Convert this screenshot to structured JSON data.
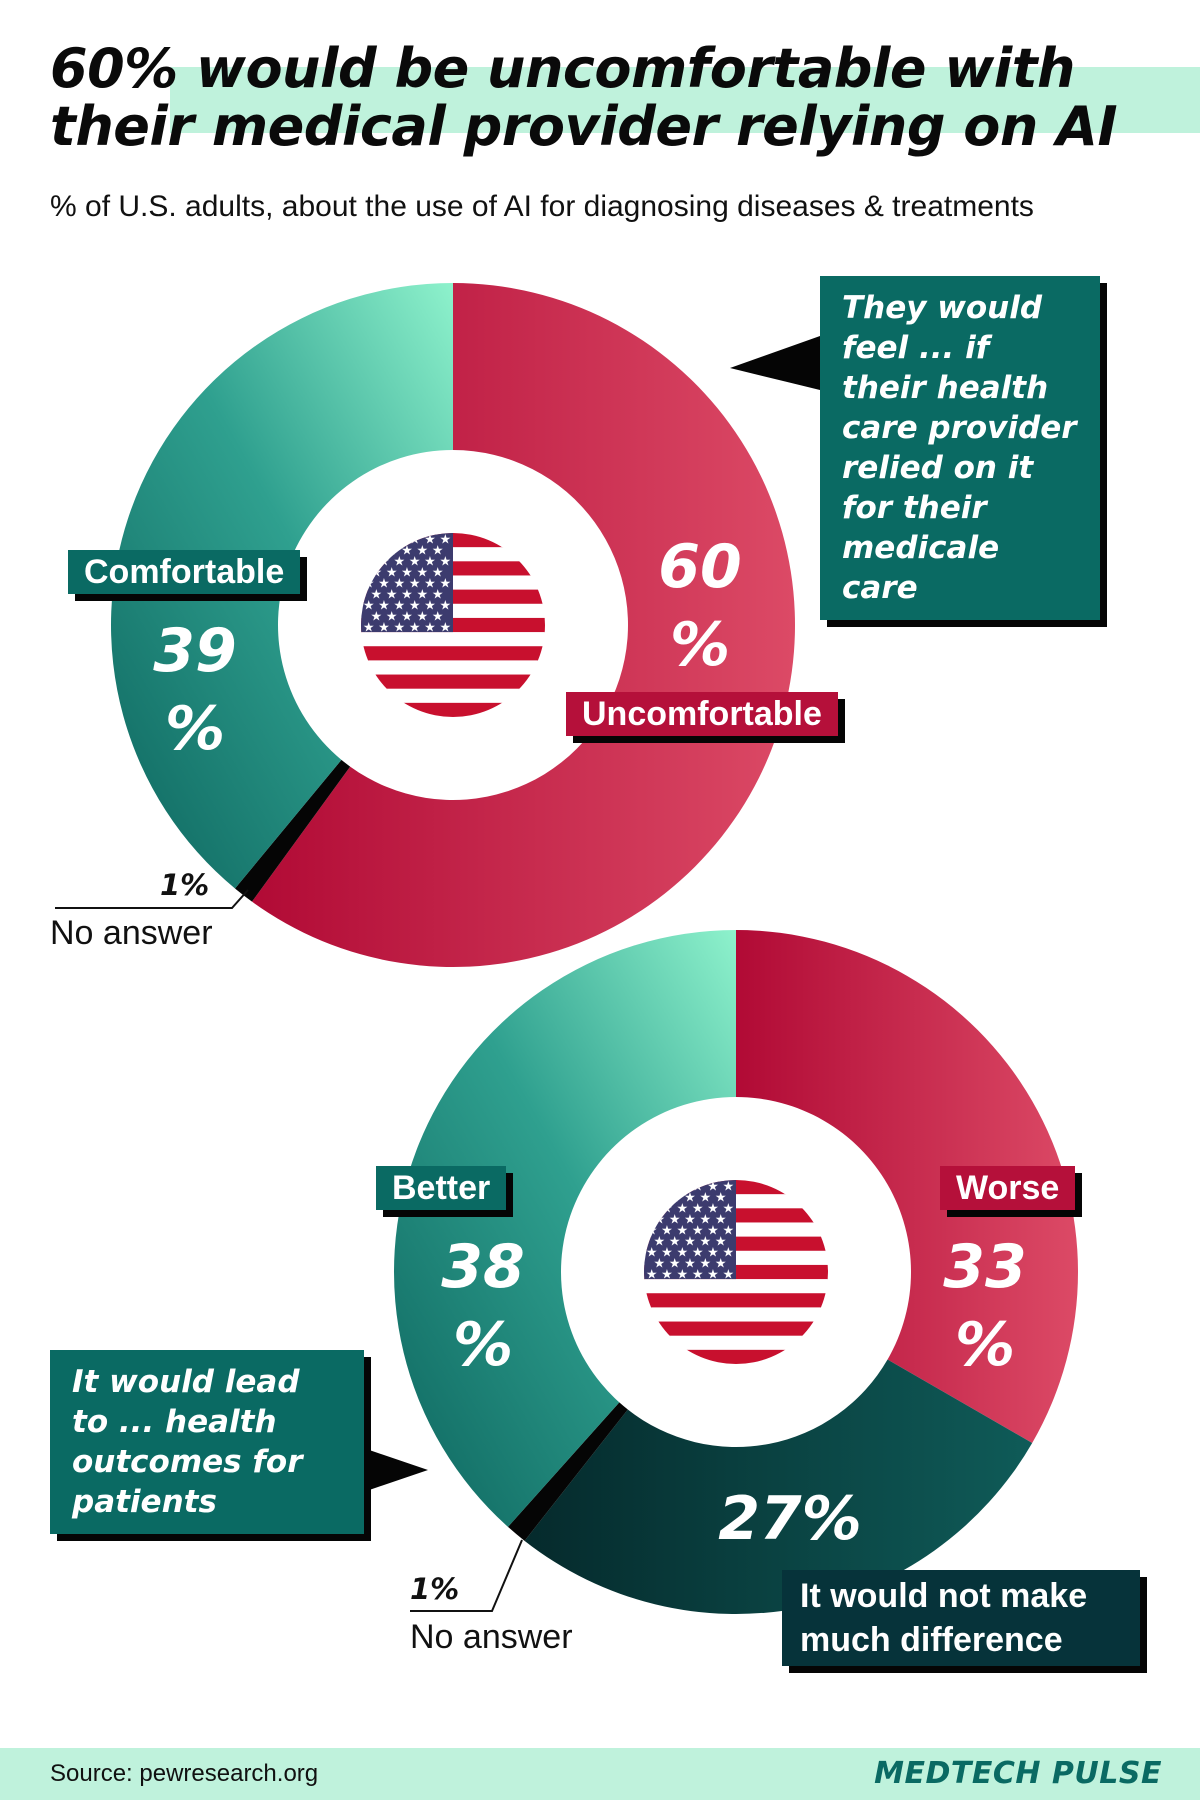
{
  "title_lines": [
    "60% would be uncomfortable with",
    "their medical provider relying on AI"
  ],
  "subtitle": "% of U.S. adults, about the use of AI for diagnosing diseases & treatments",
  "chart_data": [
    {
      "type": "pie",
      "variant": "donut",
      "categories": [
        "Uncomfortable",
        "No answer",
        "Comfortable"
      ],
      "values": [
        60,
        1,
        39
      ],
      "colors": [
        "#c8214b",
        "#050505",
        "#2b9a8a"
      ],
      "annotation": "They would feel ... if their health care provider relied on it for their medicale care",
      "labels": {
        "uncomfortable": "Uncomfortable",
        "uncomfortable_pct": "60\n%",
        "comfortable": "Comfortable",
        "comfortable_pct": "39\n%",
        "no_answer_pct": "1%",
        "no_answer": "No answer"
      }
    },
    {
      "type": "pie",
      "variant": "donut",
      "categories": [
        "Worse",
        "It would not make much difference",
        "No answer",
        "Better"
      ],
      "values": [
        33,
        27,
        1,
        38
      ],
      "colors": [
        "#c8214b",
        "#0d4b4b",
        "#050505",
        "#2b9a8a"
      ],
      "annotation": "It would lead to ... health outcomes for patients",
      "labels": {
        "worse": "Worse",
        "worse_pct": "33\n%",
        "no_difference_pct": "27%",
        "no_difference": "It would not make much difference",
        "better": "Better",
        "better_pct": "38\n%",
        "no_answer_pct": "1%",
        "no_answer": "No answer"
      }
    }
  ],
  "footer": {
    "source": "Source: pewresearch.org",
    "brand": "MEDTECH PULSE"
  },
  "icons": {
    "center": "us-flag-icon"
  }
}
